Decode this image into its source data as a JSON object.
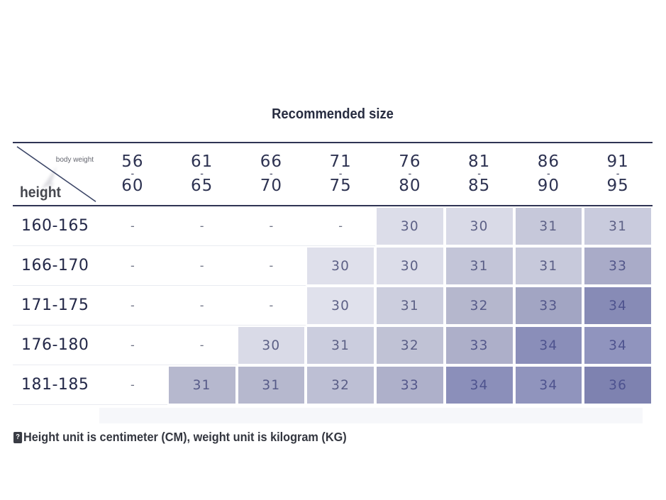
{
  "title": "Recommended size",
  "corner": {
    "top_label": "body weight",
    "bottom_label": "height"
  },
  "range_separator": "-",
  "note": {
    "prefix": "?",
    "text": "Height unit is centimeter (CM), weight unit is kilogram (KG)"
  },
  "colors": {
    "table_border_navy": "#2f3454",
    "header_text_navy": "#2e3352",
    "row_label_navy": "#232848",
    "title_text": "#272c40",
    "note_text": "#33363f",
    "corner_label_gray": "#63656e",
    "height_label_gray": "#46484f",
    "dash_text": "#6b6f82",
    "hairline": "#e9ebf1",
    "cell_gap_white": "#ffffff",
    "shade_lightest": "#dfe0eb",
    "shade_darkest": "#7e82b0"
  },
  "chart_data": {
    "type": "table",
    "title": "Recommended size",
    "row_axis_label": "height",
    "column_axis_label": "body weight",
    "units_note": "Height unit is centimeter (CM), weight unit is kilogram (KG)",
    "weight_columns": [
      {
        "top": "56",
        "bottom": "60"
      },
      {
        "top": "61",
        "bottom": "65"
      },
      {
        "top": "66",
        "bottom": "70"
      },
      {
        "top": "71",
        "bottom": "75"
      },
      {
        "top": "76",
        "bottom": "80"
      },
      {
        "top": "81",
        "bottom": "85"
      },
      {
        "top": "86",
        "bottom": "90"
      },
      {
        "top": "91",
        "bottom": "95"
      }
    ],
    "rows": [
      {
        "height": "160-165",
        "cells": [
          {
            "v": "-",
            "bg": "#ffffff",
            "fg": "#6b6f82"
          },
          {
            "v": "-",
            "bg": "#ffffff",
            "fg": "#6b6f82"
          },
          {
            "v": "-",
            "bg": "#ffffff",
            "fg": "#6b6f82"
          },
          {
            "v": "-",
            "bg": "#ffffff",
            "fg": "#6b6f82"
          },
          {
            "v": "30",
            "bg": "#dcdde9",
            "fg": "#5d6186"
          },
          {
            "v": "30",
            "bg": "#d9dae7",
            "fg": "#5d6186"
          },
          {
            "v": "31",
            "bg": "#c6c8da",
            "fg": "#5d6186"
          },
          {
            "v": "31",
            "bg": "#c9cbdd",
            "fg": "#5d6186"
          }
        ]
      },
      {
        "height": "166-170",
        "cells": [
          {
            "v": "-",
            "bg": "#ffffff",
            "fg": "#6b6f82"
          },
          {
            "v": "-",
            "bg": "#ffffff",
            "fg": "#6b6f82"
          },
          {
            "v": "-",
            "bg": "#ffffff",
            "fg": "#6b6f82"
          },
          {
            "v": "30",
            "bg": "#dfe0eb",
            "fg": "#5d6186"
          },
          {
            "v": "30",
            "bg": "#dcdde9",
            "fg": "#5d6186"
          },
          {
            "v": "31",
            "bg": "#c3c5d8",
            "fg": "#5a5e86"
          },
          {
            "v": "31",
            "bg": "#c7c9db",
            "fg": "#5a5e86"
          },
          {
            "v": "33",
            "bg": "#a9abc8",
            "fg": "#53578a"
          }
        ]
      },
      {
        "height": "171-175",
        "cells": [
          {
            "v": "-",
            "bg": "#ffffff",
            "fg": "#6b6f82"
          },
          {
            "v": "-",
            "bg": "#ffffff",
            "fg": "#6b6f82"
          },
          {
            "v": "-",
            "bg": "#ffffff",
            "fg": "#6b6f82"
          },
          {
            "v": "30",
            "bg": "#e0e1ec",
            "fg": "#5d6186"
          },
          {
            "v": "31",
            "bg": "#cccede",
            "fg": "#5d6186"
          },
          {
            "v": "32",
            "bg": "#b5b7cd",
            "fg": "#565a88"
          },
          {
            "v": "33",
            "bg": "#a2a5c3",
            "fg": "#53578a"
          },
          {
            "v": "34",
            "bg": "#878bb6",
            "fg": "#4e538e"
          }
        ]
      },
      {
        "height": "176-180",
        "cells": [
          {
            "v": "-",
            "bg": "#ffffff",
            "fg": "#6b6f82"
          },
          {
            "v": "-",
            "bg": "#ffffff",
            "fg": "#6b6f82"
          },
          {
            "v": "30",
            "bg": "#d9dae7",
            "fg": "#5d6186"
          },
          {
            "v": "31",
            "bg": "#cbcdde",
            "fg": "#5d6186"
          },
          {
            "v": "32",
            "bg": "#c0c2d5",
            "fg": "#5a5e86"
          },
          {
            "v": "33",
            "bg": "#adafc9",
            "fg": "#53578a"
          },
          {
            "v": "34",
            "bg": "#8a8eb9",
            "fg": "#4e538e"
          },
          {
            "v": "34",
            "bg": "#9094be",
            "fg": "#4e538e"
          }
        ]
      },
      {
        "height": "181-185",
        "cells": [
          {
            "v": "-",
            "bg": "#ffffff",
            "fg": "#6b6f82"
          },
          {
            "v": "31",
            "bg": "#b6b8ce",
            "fg": "#565a88"
          },
          {
            "v": "31",
            "bg": "#b6b8ce",
            "fg": "#565a88"
          },
          {
            "v": "32",
            "bg": "#bdbfd4",
            "fg": "#5a5e86"
          },
          {
            "v": "33",
            "bg": "#aeb0ca",
            "fg": "#53578a"
          },
          {
            "v": "34",
            "bg": "#8b8fba",
            "fg": "#4e538e"
          },
          {
            "v": "34",
            "bg": "#9094bd",
            "fg": "#4e538e"
          },
          {
            "v": "36",
            "bg": "#7e82b0",
            "fg": "#4d528f"
          }
        ]
      }
    ]
  }
}
